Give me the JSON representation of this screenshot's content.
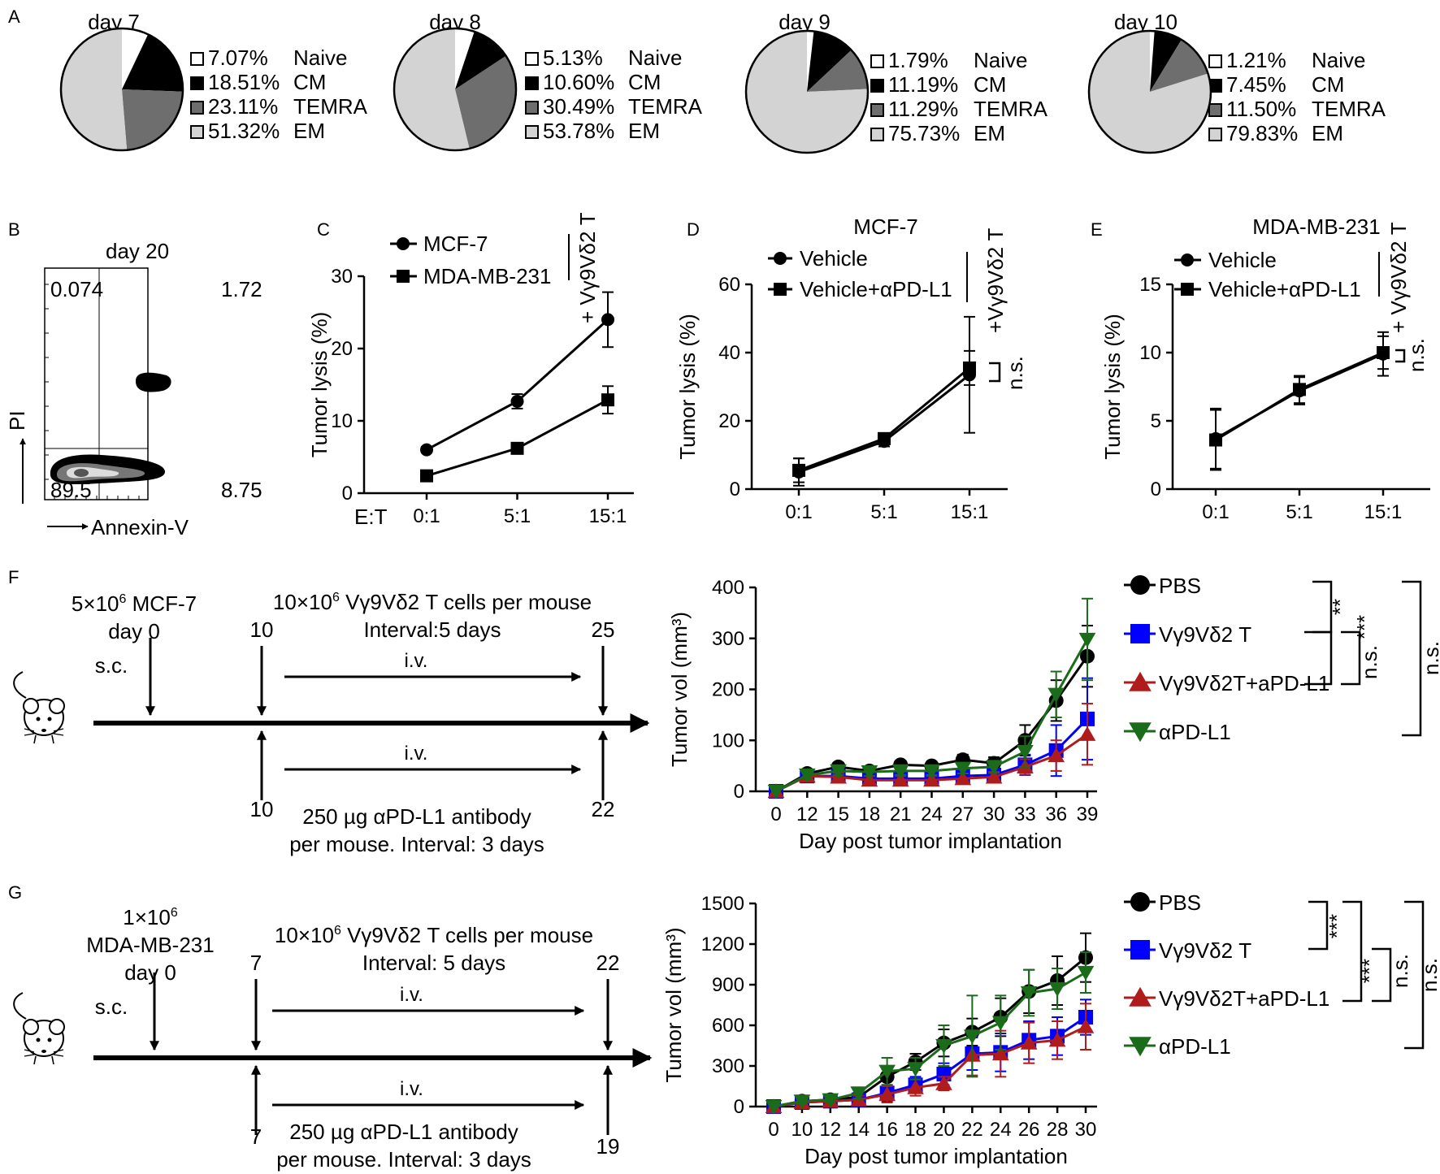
{
  "chart_data": [
    {
      "panel": "A",
      "type": "pie",
      "colors": {
        "Naive": "#ffffff",
        "CM": "#000000",
        "TEMRA": "#6e6e6e",
        "EM": "#d3d3d3"
      },
      "pies": [
        {
          "title": "day 7",
          "slices": [
            {
              "pct": "7.07%",
              "label": "Naive",
              "value": 7.07
            },
            {
              "pct": "18.51%",
              "label": "CM",
              "value": 18.51
            },
            {
              "pct": "23.11%",
              "label": "TEMRA",
              "value": 23.11
            },
            {
              "pct": "51.32%",
              "label": "EM",
              "value": 51.32
            }
          ]
        },
        {
          "title": "day 8",
          "slices": [
            {
              "pct": "5.13%",
              "label": "Naive",
              "value": 5.13
            },
            {
              "pct": "10.60%",
              "label": "CM",
              "value": 10.6
            },
            {
              "pct": "30.49%",
              "label": "TEMRA",
              "value": 30.49
            },
            {
              "pct": "53.78%",
              "label": "EM",
              "value": 53.78
            }
          ]
        },
        {
          "title": "day 9",
          "slices": [
            {
              "pct": "1.79%",
              "label": "Naive",
              "value": 1.79
            },
            {
              "pct": "11.19%",
              "label": "CM",
              "value": 11.19
            },
            {
              "pct": "11.29%",
              "label": "TEMRA",
              "value": 11.29
            },
            {
              "pct": "75.73%",
              "label": "EM",
              "value": 75.73
            }
          ]
        },
        {
          "title": "day 10",
          "slices": [
            {
              "pct": "1.21%",
              "label": "Naive",
              "value": 1.21
            },
            {
              "pct": "7.45%",
              "label": "CM",
              "value": 7.45
            },
            {
              "pct": "11.50%",
              "label": "TEMRA",
              "value": 11.5
            },
            {
              "pct": "79.83%",
              "label": "EM",
              "value": 79.83
            }
          ]
        }
      ]
    },
    {
      "panel": "B",
      "type": "flow-cytometry",
      "title": "day 20",
      "xlabel": "Annexin-V",
      "ylabel": "PI",
      "quadrants": {
        "upper_left": "0.074",
        "upper_right": "1.72",
        "lower_left": "89.5",
        "lower_right": "8.75"
      }
    },
    {
      "panel": "C",
      "type": "line",
      "title": "",
      "xlabel": "E:T",
      "ylabel": "Tumor lysis (%)",
      "categories": [
        "0:1",
        "5:1",
        "15:1"
      ],
      "ylim": [
        0,
        30
      ],
      "yticks": [
        0,
        10,
        20,
        30
      ],
      "annotation": "+ Vγ9Vδ2 T",
      "series": [
        {
          "name": "MCF-7",
          "marker": "circle",
          "values": [
            6,
            12.7,
            24
          ],
          "errors": [
            0.4,
            1,
            3.8
          ]
        },
        {
          "name": "MDA-MB-231",
          "marker": "square",
          "values": [
            2.4,
            6.2,
            12.9
          ],
          "errors": [
            0.3,
            0.5,
            1.9
          ]
        }
      ]
    },
    {
      "panel": "D",
      "type": "line",
      "title": "MCF-7",
      "ylabel": "Tumor lysis (%)",
      "categories": [
        "0:1",
        "5:1",
        "15:1"
      ],
      "ylim": [
        0,
        60
      ],
      "yticks": [
        0,
        20,
        40,
        60
      ],
      "annotation": "+Vγ9Vδ2 T",
      "significance": "n.s.",
      "series": [
        {
          "name": "Vehicle",
          "marker": "circle",
          "values": [
            5,
            14,
            33.5
          ],
          "errors": [
            4,
            1.5,
            17
          ]
        },
        {
          "name": "Vehicle+αPD-L1",
          "marker": "square",
          "values": [
            5.5,
            14.8,
            35.5
          ],
          "errors": [
            3.5,
            1.5,
            5
          ]
        }
      ]
    },
    {
      "panel": "E",
      "type": "line",
      "title": "MDA-MB-231",
      "ylabel": "Tumor lysis (%)",
      "categories": [
        "0:1",
        "5:1",
        "15:1"
      ],
      "ylim": [
        0,
        15
      ],
      "yticks": [
        0,
        5,
        10,
        15
      ],
      "annotation": "+ Vγ9Vδ2 T",
      "significance": "n.s.",
      "series": [
        {
          "name": "Vehicle",
          "marker": "circle",
          "values": [
            3.7,
            7.2,
            9.9
          ],
          "errors": [
            2.2,
            1,
            1.6
          ]
        },
        {
          "name": "Vehicle+αPD-L1",
          "marker": "square",
          "values": [
            3.6,
            7.3,
            10
          ],
          "errors": [
            2.2,
            1,
            1.2
          ]
        }
      ]
    },
    {
      "panel": "F",
      "type": "line",
      "xlabel": "Day post tumor implantation",
      "ylabel": "Tumor vol (mm³)",
      "categories": [
        "0",
        "12",
        "15",
        "18",
        "21",
        "24",
        "27",
        "30",
        "33",
        "36",
        "39"
      ],
      "ylim": [
        0,
        400
      ],
      "yticks": [
        0,
        100,
        200,
        300,
        400
      ],
      "series": [
        {
          "name": "PBS",
          "color": "#000000",
          "marker": "circle",
          "values": [
            0,
            35,
            48,
            40,
            52,
            50,
            62,
            55,
            100,
            178,
            265
          ],
          "errors": [
            0,
            8,
            8,
            8,
            8,
            8,
            10,
            12,
            30,
            40,
            60
          ]
        },
        {
          "name": "Vγ9Vδ2 T",
          "color": "#0000ff",
          "marker": "square",
          "values": [
            0,
            30,
            30,
            25,
            25,
            25,
            30,
            32,
            52,
            80,
            142
          ],
          "errors": [
            0,
            8,
            8,
            8,
            8,
            8,
            10,
            10,
            20,
            50,
            80
          ]
        },
        {
          "name": "Vγ9Vδ2T+aPD-L1",
          "color": "#b01c1c",
          "marker": "triangle-up",
          "values": [
            0,
            30,
            28,
            22,
            22,
            22,
            25,
            28,
            48,
            70,
            112
          ],
          "errors": [
            0,
            8,
            8,
            8,
            8,
            8,
            10,
            10,
            15,
            30,
            60
          ]
        },
        {
          "name": "αPD-L1",
          "color": "#1a6b1a",
          "marker": "triangle-down",
          "values": [
            0,
            32,
            40,
            38,
            40,
            40,
            45,
            48,
            78,
            190,
            298
          ],
          "errors": [
            0,
            8,
            8,
            8,
            8,
            8,
            10,
            12,
            30,
            45,
            80
          ]
        }
      ],
      "significance": [
        {
          "pair": [
            "PBS",
            "Vγ9Vδ2 T"
          ],
          "label": "**"
        },
        {
          "pair": [
            "PBS",
            "Vγ9Vδ2T+aPD-L1"
          ],
          "label": "***"
        },
        {
          "pair": [
            "Vγ9Vδ2 T",
            "Vγ9Vδ2T+aPD-L1"
          ],
          "label": "n.s."
        },
        {
          "pair": [
            "PBS",
            "αPD-L1"
          ],
          "label": "n.s."
        }
      ]
    },
    {
      "panel": "G",
      "type": "line",
      "xlabel": "Day post tumor implantation",
      "ylabel": "Tumor vol (mm³)",
      "categories": [
        "0",
        "10",
        "12",
        "14",
        "16",
        "18",
        "20",
        "22",
        "24",
        "26",
        "28",
        "30"
      ],
      "ylim": [
        0,
        1500
      ],
      "yticks": [
        0,
        300,
        600,
        900,
        1200,
        1500
      ],
      "series": [
        {
          "name": "PBS",
          "color": "#000000",
          "marker": "circle",
          "values": [
            0,
            40,
            50,
            70,
            220,
            330,
            470,
            550,
            660,
            850,
            930,
            1100
          ],
          "errors": [
            0,
            20,
            20,
            30,
            80,
            60,
            100,
            100,
            140,
            160,
            180,
            180
          ]
        },
        {
          "name": "Vγ9Vδ2 T",
          "color": "#0000ff",
          "marker": "square",
          "values": [
            0,
            30,
            40,
            50,
            100,
            160,
            240,
            390,
            400,
            490,
            520,
            660
          ],
          "errors": [
            0,
            20,
            20,
            30,
            60,
            60,
            80,
            120,
            140,
            140,
            140,
            130
          ]
        },
        {
          "name": "Vγ9Vδ2T+aPD-L1",
          "color": "#b01c1c",
          "marker": "triangle-up",
          "values": [
            0,
            30,
            40,
            50,
            90,
            140,
            170,
            380,
            390,
            470,
            490,
            590
          ],
          "errors": [
            0,
            20,
            20,
            30,
            60,
            60,
            50,
            150,
            170,
            150,
            140,
            170
          ]
        },
        {
          "name": "αPD-L1",
          "color": "#1a6b1a",
          "marker": "triangle-down",
          "values": [
            0,
            40,
            50,
            100,
            260,
            280,
            450,
            520,
            620,
            840,
            870,
            990
          ],
          "errors": [
            0,
            20,
            20,
            40,
            100,
            80,
            150,
            300,
            200,
            170,
            150,
            150
          ]
        }
      ],
      "significance": [
        {
          "pair": [
            "PBS",
            "Vγ9Vδ2 T"
          ],
          "label": "***"
        },
        {
          "pair": [
            "PBS",
            "Vγ9Vδ2T+aPD-L1"
          ],
          "label": "***"
        },
        {
          "pair": [
            "Vγ9Vδ2 T",
            "Vγ9Vδ2T+aPD-L1"
          ],
          "label": "n.s."
        },
        {
          "pair": [
            "PBS",
            "αPD-L1"
          ],
          "label": "n.s."
        }
      ]
    }
  ],
  "schematic_F": {
    "tumor_line1": "5×10",
    "tumor_exp": "6",
    "tumor_line1b": " MCF-7",
    "tumor_day": "day 0",
    "route_sc": "s.c.",
    "tcell_label": "10×10",
    "tcell_exp": "6",
    "tcell_label_b": " Vγ9Vδ2 T cells per mouse",
    "tcell_interval": "Interval:5 days",
    "tcell_start": "10",
    "tcell_end": "25",
    "route_iv_top": "i.v.",
    "route_iv_bottom": "i.v.",
    "ab_start": "10",
    "ab_end": "22",
    "ab_label": "250 µg αPD-L1 antibody",
    "ab_interval": "per mouse. Interval: 3 days"
  },
  "schematic_G": {
    "tumor_line1": "1×10",
    "tumor_exp": "6",
    "tumor_line2": "MDA-MB-231",
    "tumor_day": "day 0",
    "route_sc": "s.c.",
    "tcell_label": "10×10",
    "tcell_exp": "6",
    "tcell_label_b": " Vγ9Vδ2 T cells per mouse",
    "tcell_interval": "Interval: 5 days",
    "tcell_start": "7",
    "tcell_end": "22",
    "route_iv_top": "i.v.",
    "route_iv_bottom": "i.v.",
    "ab_start": "7",
    "ab_end": "19",
    "ab_label": "250 µg αPD-L1 antibody",
    "ab_interval": "per mouse. Interval: 3 days"
  },
  "panel_letters": [
    "A",
    "B",
    "C",
    "D",
    "E",
    "F",
    "G"
  ]
}
